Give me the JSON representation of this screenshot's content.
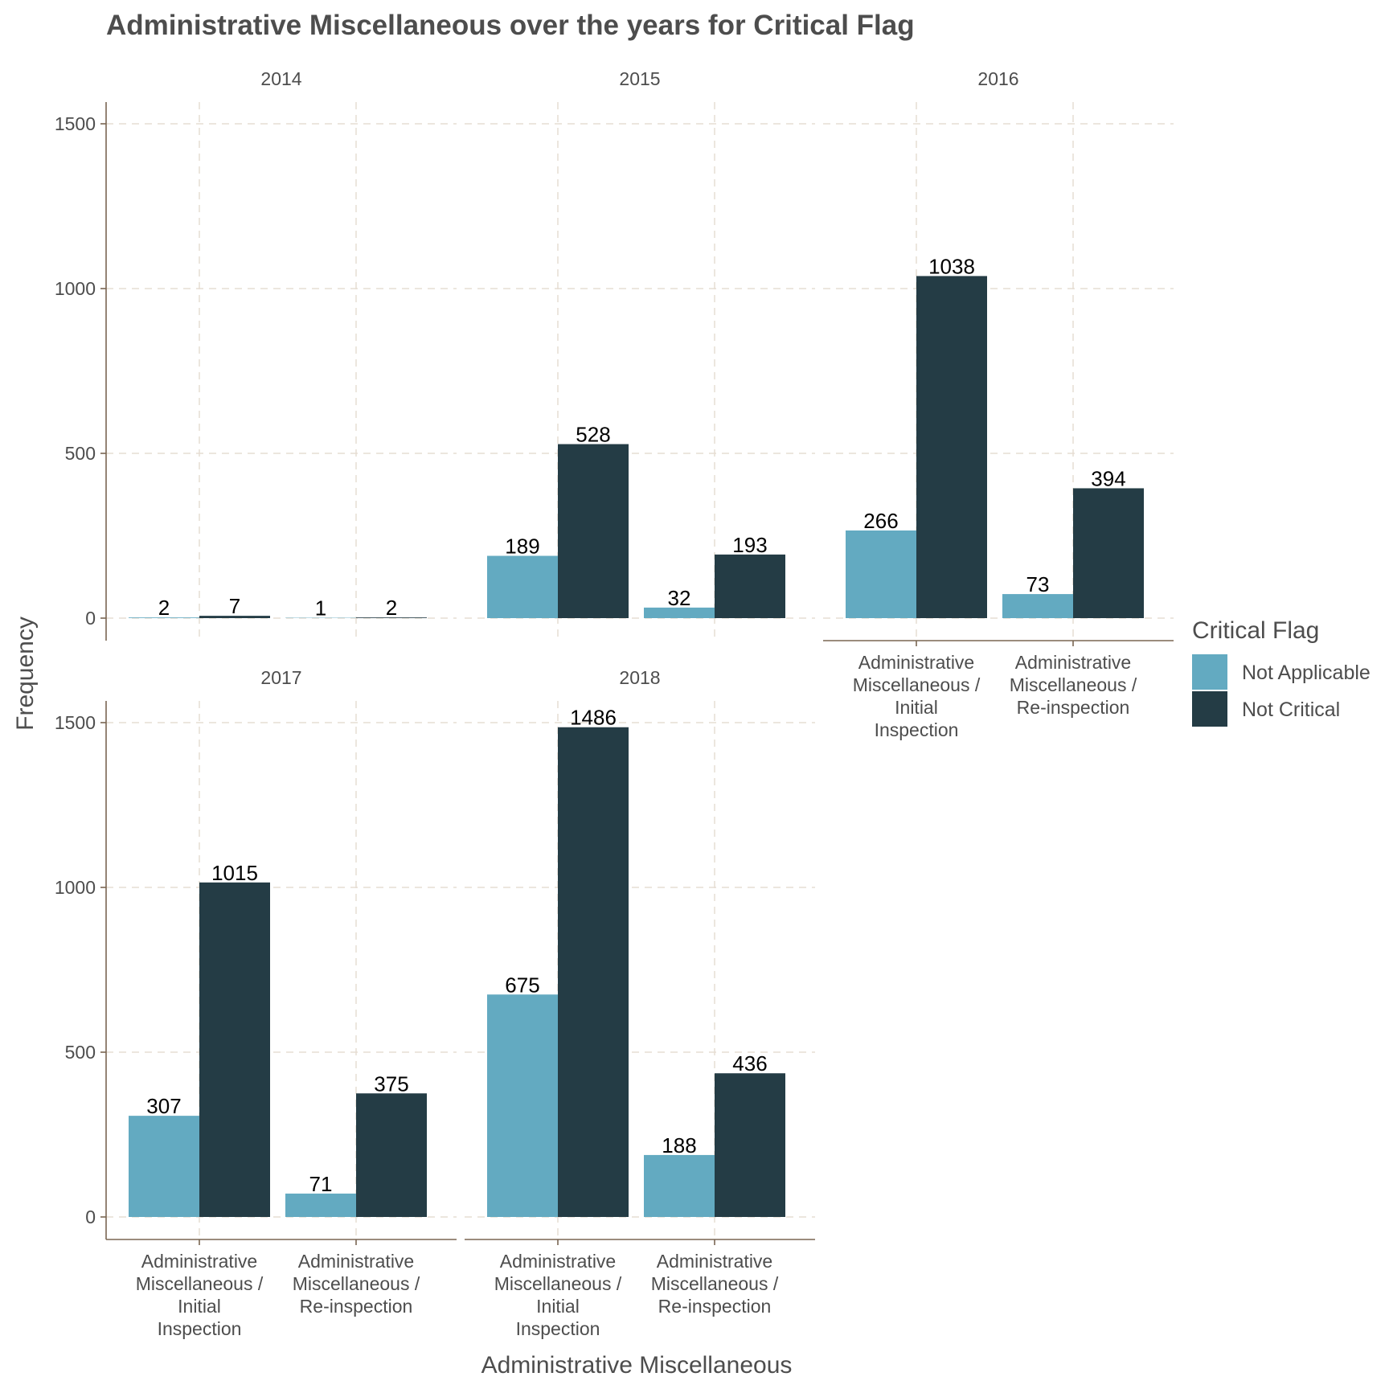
{
  "chart_data": {
    "type": "bar",
    "title": "Administrative Miscellaneous over the years for Critical Flag",
    "xlabel": "Administrative Miscellaneous",
    "ylabel": "Frequency",
    "ylim": [
      0,
      1500
    ],
    "yticks": [
      0,
      500,
      1000,
      1500
    ],
    "grid": true,
    "categories": [
      "Administrative Miscellaneous / Initial Inspection",
      "Administrative Miscellaneous / Re-inspection"
    ],
    "category_label_lines": [
      [
        "Administrative",
        "Miscellaneous /",
        "Initial",
        "Inspection"
      ],
      [
        "Administrative",
        "Miscellaneous /",
        "Re-inspection"
      ]
    ],
    "legend": {
      "title": "Critical Flag",
      "position": "right",
      "entries": [
        "Not Applicable",
        "Not Critical"
      ]
    },
    "colors": {
      "Not Applicable": "#63aac1",
      "Not Critical": "#243c45"
    },
    "facets": [
      {
        "label": "2014",
        "series": [
          {
            "name": "Not Applicable",
            "values": [
              2,
              1
            ]
          },
          {
            "name": "Not Critical",
            "values": [
              7,
              2
            ]
          }
        ]
      },
      {
        "label": "2015",
        "series": [
          {
            "name": "Not Applicable",
            "values": [
              189,
              32
            ]
          },
          {
            "name": "Not Critical",
            "values": [
              528,
              193
            ]
          }
        ]
      },
      {
        "label": "2016",
        "series": [
          {
            "name": "Not Applicable",
            "values": [
              266,
              73
            ]
          },
          {
            "name": "Not Critical",
            "values": [
              1038,
              394
            ]
          }
        ]
      },
      {
        "label": "2017",
        "series": [
          {
            "name": "Not Applicable",
            "values": [
              307,
              71
            ]
          },
          {
            "name": "Not Critical",
            "values": [
              1015,
              375
            ]
          }
        ]
      },
      {
        "label": "2018",
        "series": [
          {
            "name": "Not Applicable",
            "values": [
              675,
              188
            ]
          },
          {
            "name": "Not Critical",
            "values": [
              1486,
              436
            ]
          }
        ]
      }
    ]
  }
}
